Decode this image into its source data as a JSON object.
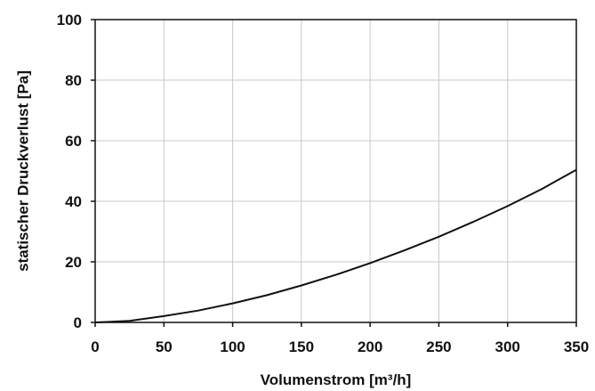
{
  "chart_data": {
    "type": "line",
    "title": "",
    "xlabel": "Volumenstrom [m³/h]",
    "ylabel": "statischer Druckverlust [Pa]",
    "xlim": [
      0,
      350
    ],
    "ylim": [
      0,
      100
    ],
    "xticks": [
      0,
      50,
      100,
      150,
      200,
      250,
      300,
      350
    ],
    "yticks": [
      0,
      20,
      40,
      60,
      80,
      100
    ],
    "grid": true,
    "series": [
      {
        "x": [
          0,
          25,
          50,
          75,
          100,
          125,
          150,
          175,
          200,
          225,
          250,
          275,
          300,
          325,
          350
        ],
        "y": [
          0,
          0.5,
          2.1,
          3.9,
          6.3,
          9.0,
          12.2,
          15.7,
          19.6,
          23.8,
          28.3,
          33.2,
          38.4,
          44.1,
          50.4
        ]
      }
    ],
    "colors": {
      "line": "#111111",
      "grid": "#c8c8c8",
      "axis": "#111111"
    }
  }
}
